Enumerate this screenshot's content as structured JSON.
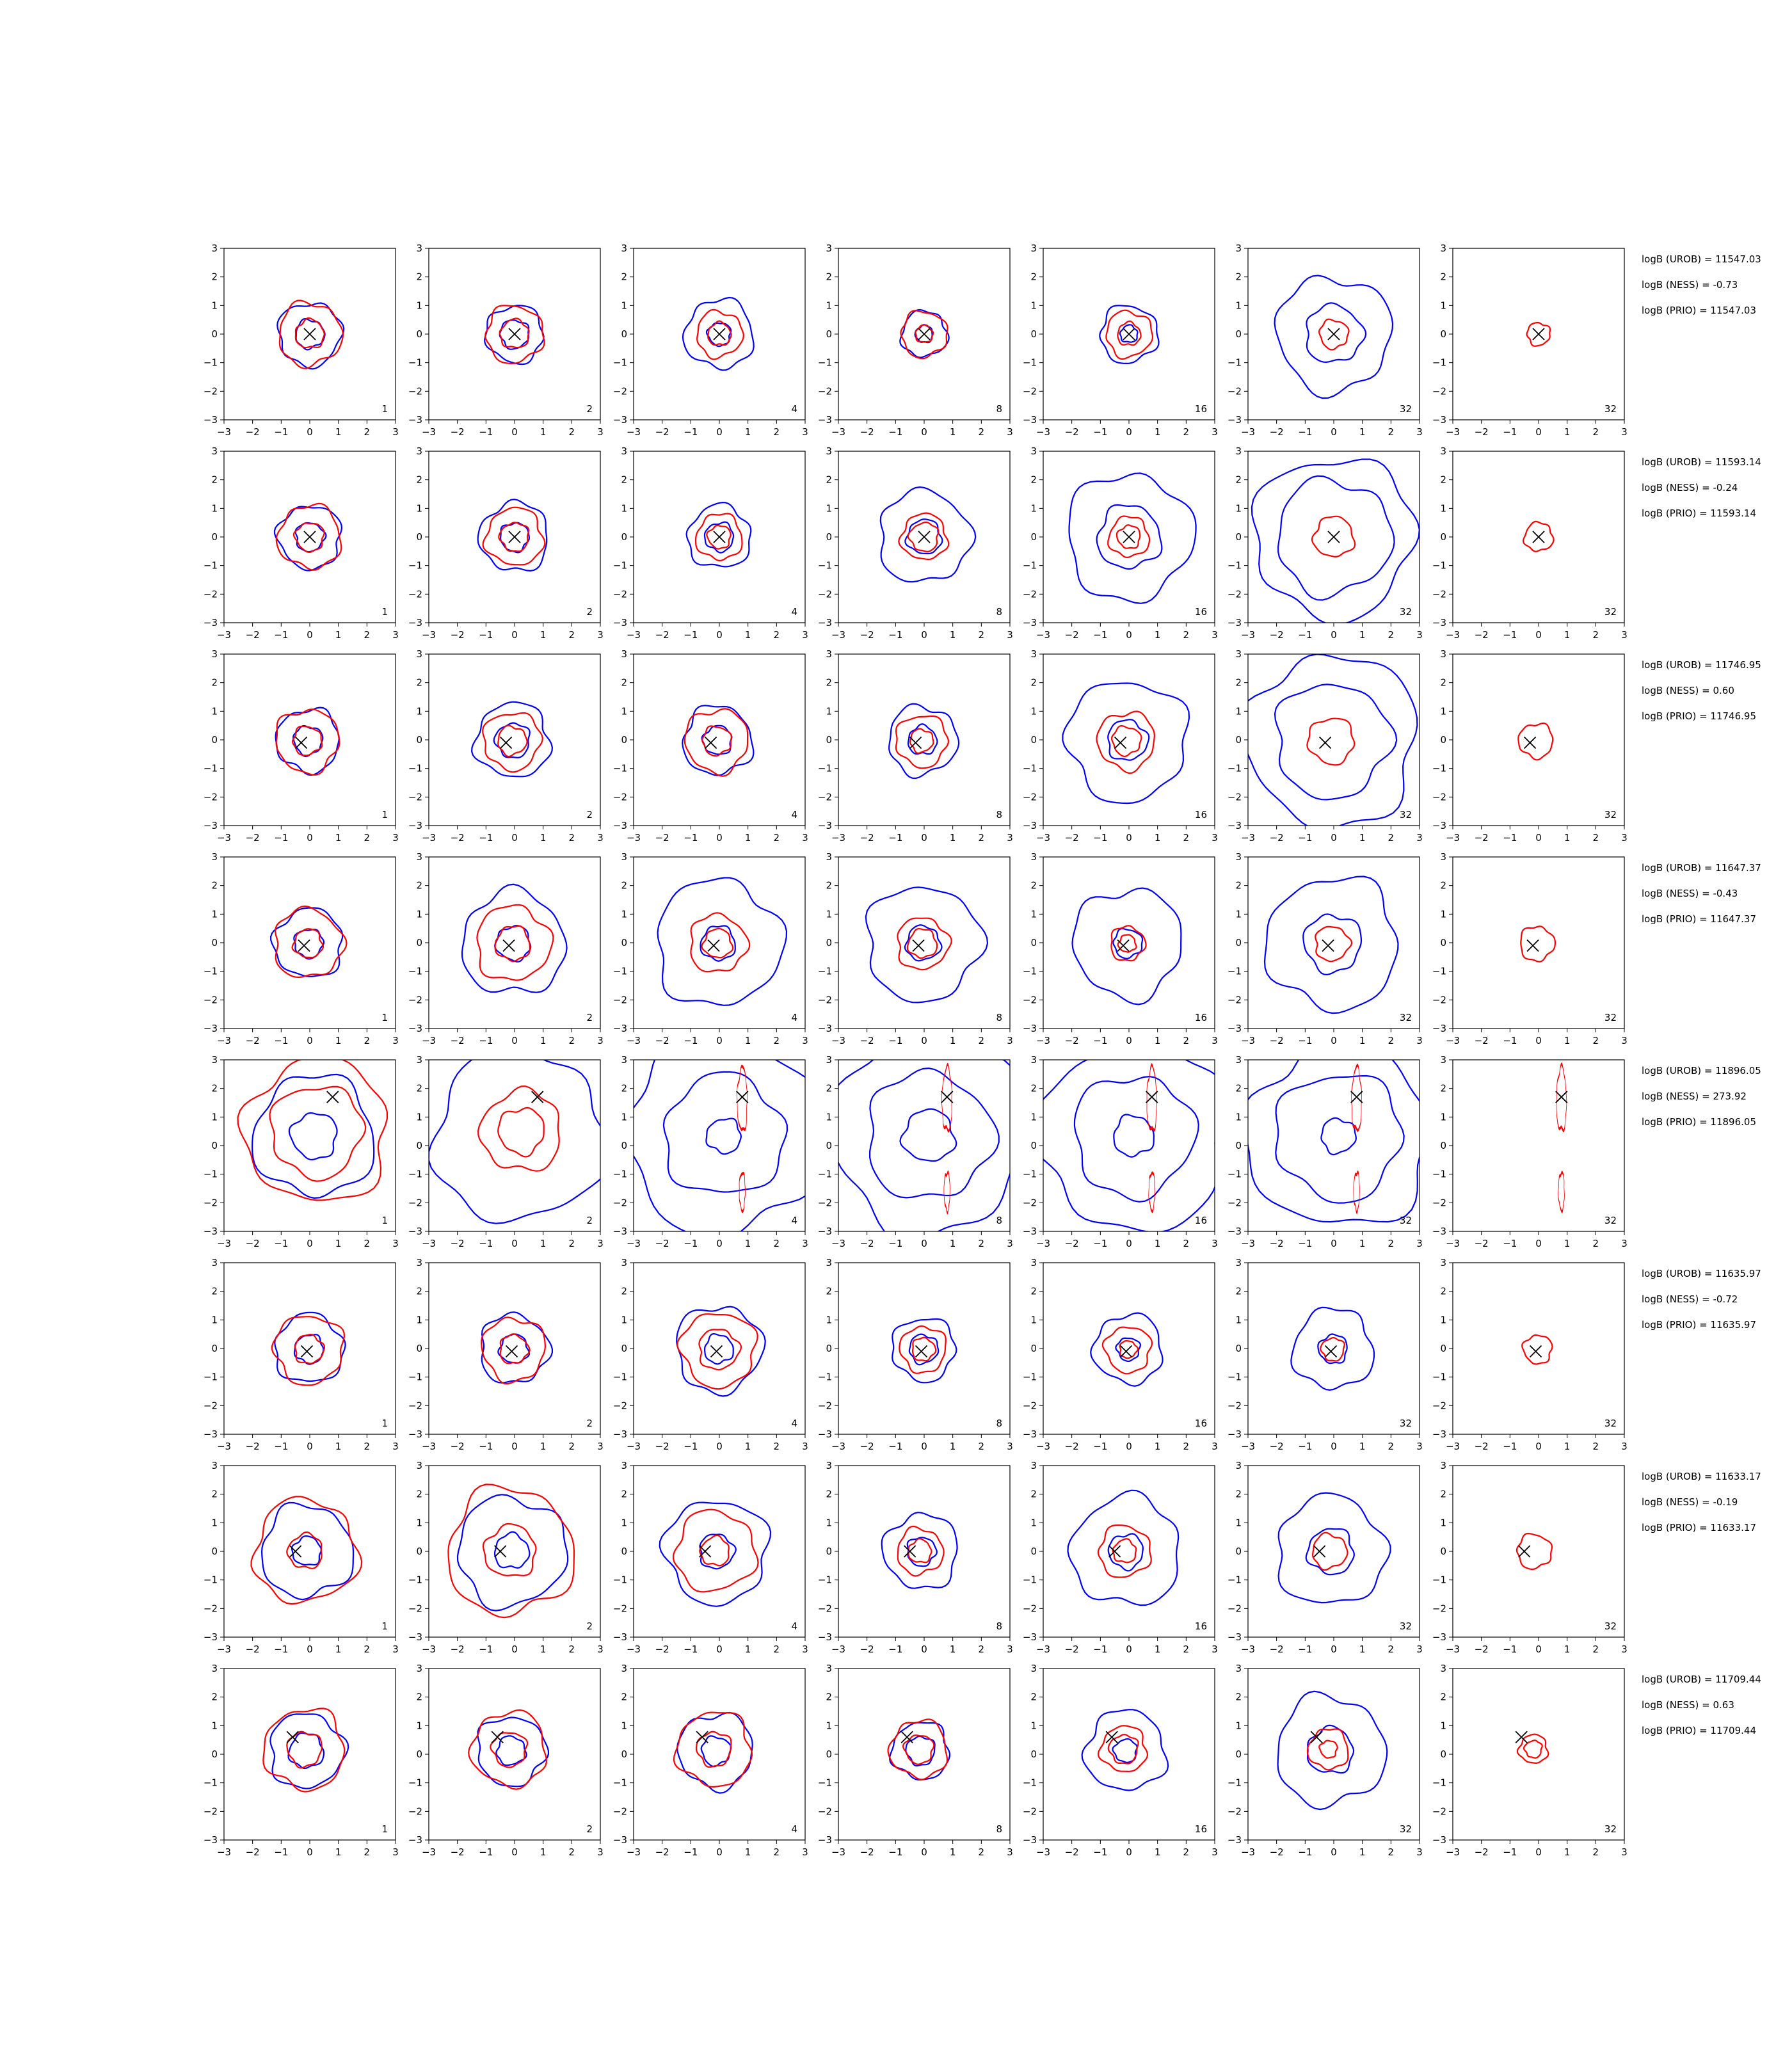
{
  "chart_data": {
    "type": "contour-grid",
    "rows": 8,
    "cols": 7,
    "xlim": [
      -3,
      3
    ],
    "ylim": [
      -3,
      3
    ],
    "ticks": [
      -3,
      -2,
      -1,
      0,
      1,
      2,
      3
    ],
    "tick_labels": [
      "−3",
      "−2",
      "−1",
      "0",
      "1",
      "2",
      "3"
    ],
    "colors": {
      "blue": "#0000ff",
      "red": "#ff0000",
      "marker": "#000000"
    },
    "row_data": [
      {
        "marker": [
          0.0,
          0.0
        ],
        "panels": [
          {
            "label": "1",
            "blue": [
              1.1,
              0.5
            ],
            "red": [
              1.1,
              0.5
            ]
          },
          {
            "label": "2",
            "blue": [
              1.0,
              0.5
            ],
            "red": [
              1.0,
              0.5
            ]
          },
          {
            "label": "4",
            "blue": [
              1.2,
              0.4
            ],
            "red": [
              0.8,
              0.4
            ]
          },
          {
            "label": "8",
            "blue": [
              0.8,
              0.3
            ],
            "red": [
              0.8,
              0.3
            ]
          },
          {
            "label": "16",
            "blue": [
              1.0,
              0.3
            ],
            "red": [
              0.8,
              0.4
            ]
          },
          {
            "label": "32",
            "blue": [
              2.0,
              1.0
            ],
            "red": [
              0.5
            ]
          },
          {
            "label": "32",
            "blue": [],
            "red": [
              0.4
            ]
          }
        ],
        "stats": [
          "logB (UROB) = 11547.03",
          "logB (NESS) = -0.73",
          "logB (PRIO) = 11547.03"
        ]
      },
      {
        "marker": [
          0.0,
          0.0
        ],
        "panels": [
          {
            "label": "1",
            "blue": [
              1.1,
              0.5
            ],
            "red": [
              1.1,
              0.5
            ]
          },
          {
            "label": "2",
            "blue": [
              1.2,
              0.5
            ],
            "red": [
              1.0,
              0.5
            ]
          },
          {
            "label": "4",
            "blue": [
              1.1,
              0.5
            ],
            "red": [
              0.8,
              0.4
            ]
          },
          {
            "label": "8",
            "blue": [
              1.6,
              0.6
            ],
            "red": [
              0.8,
              0.5
            ]
          },
          {
            "label": "16",
            "blue": [
              2.2,
              1.1
            ],
            "red": [
              0.7,
              0.4
            ]
          },
          {
            "label": "32",
            "blue": [
              2.8,
              2.0
            ],
            "red": [
              0.7
            ]
          },
          {
            "label": "32",
            "blue": [],
            "red": [
              0.5
            ]
          }
        ],
        "stats": [
          "logB (UROB) = 11593.14",
          "logB (NESS) = -0.24",
          "logB (PRIO) = 11593.14"
        ]
      },
      {
        "marker": [
          -0.3,
          -0.1
        ],
        "panels": [
          {
            "label": "1",
            "blue": [
              1.1,
              0.5
            ],
            "red": [
              1.1,
              0.5
            ]
          },
          {
            "label": "2",
            "blue": [
              1.3,
              0.6
            ],
            "red": [
              1.0,
              0.5
            ]
          },
          {
            "label": "4",
            "blue": [
              1.2,
              0.5
            ],
            "red": [
              1.1,
              0.5
            ]
          },
          {
            "label": "8",
            "blue": [
              1.2,
              0.5
            ],
            "red": [
              0.9,
              0.4
            ]
          },
          {
            "label": "16",
            "blue": [
              2.1,
              0.7
            ],
            "red": [
              1.0,
              0.5
            ]
          },
          {
            "label": "32",
            "blue": [
              3.0,
              2.0
            ],
            "red": [
              0.8
            ]
          },
          {
            "label": "32",
            "blue": [],
            "red": [
              0.6
            ]
          }
        ],
        "stats": [
          "logB (UROB) = 11746.95",
          "logB (NESS) = 0.60",
          "logB (PRIO) = 11746.95"
        ]
      },
      {
        "marker": [
          -0.2,
          -0.1
        ],
        "panels": [
          {
            "label": "1",
            "blue": [
              1.2,
              0.5
            ],
            "red": [
              1.2,
              0.5
            ]
          },
          {
            "label": "2",
            "blue": [
              1.8,
              0.6
            ],
            "red": [
              1.3,
              0.6
            ]
          },
          {
            "label": "4",
            "blue": [
              2.2,
              0.6
            ],
            "red": [
              1.0,
              0.5
            ]
          },
          {
            "label": "8",
            "blue": [
              2.0,
              0.6
            ],
            "red": [
              0.9,
              0.5
            ]
          },
          {
            "label": "16",
            "blue": [
              1.9,
              0.5
            ],
            "red": [
              0.6,
              0.3
            ]
          },
          {
            "label": "32",
            "blue": [
              2.3,
              1.0
            ],
            "red": [
              0.6
            ]
          },
          {
            "label": "32",
            "blue": [],
            "red": [
              0.6
            ]
          }
        ],
        "stats": [
          "logB (UROB) = 11647.37",
          "logB (NESS) = -0.43",
          "logB (PRIO) = 11647.37"
        ]
      },
      {
        "marker": [
          0.8,
          1.7
        ],
        "panels": [
          {
            "label": "1",
            "blue": [
              2.1,
              0.8
            ],
            "red": [
              2.5,
              1.6
            ]
          },
          {
            "label": "2",
            "blue": [
              3.0
            ],
            "red": [
              1.4,
              0.8
            ]
          },
          {
            "label": "4",
            "blue": [
              3.4,
              2.1,
              0.6
            ],
            "red": [
              0.5,
              0.3
            ]
          },
          {
            "label": "8",
            "blue": [
              3.4,
              2.2,
              0.9
            ],
            "red": [
              0.5,
              0.3
            ]
          },
          {
            "label": "16",
            "blue": [
              3.3,
              2.1,
              0.7
            ],
            "red": [
              0.5,
              0.3
            ]
          },
          {
            "label": "32",
            "blue": [
              3.2,
              2.2,
              0.6
            ],
            "red": [
              0.5,
              0.3
            ]
          },
          {
            "label": "32",
            "blue": [],
            "red": [
              0.5,
              0.3
            ]
          }
        ],
        "stats": [
          "logB (UROB) = 11896.05",
          "logB (NESS) = 273.92",
          "logB (PRIO) = 11896.05"
        ]
      },
      {
        "marker": [
          -0.1,
          -0.1
        ],
        "panels": [
          {
            "label": "1",
            "blue": [
              1.2,
              0.5
            ],
            "red": [
              1.2,
              0.5
            ]
          },
          {
            "label": "2",
            "blue": [
              1.2,
              0.5
            ],
            "red": [
              1.1,
              0.5
            ]
          },
          {
            "label": "4",
            "blue": [
              1.5,
              0.5
            ],
            "red": [
              1.3,
              0.7
            ]
          },
          {
            "label": "8",
            "blue": [
              1.1,
              0.5
            ],
            "red": [
              0.8,
              0.4
            ]
          },
          {
            "label": "16",
            "blue": [
              1.2,
              0.4
            ],
            "red": [
              0.8,
              0.3
            ]
          },
          {
            "label": "32",
            "blue": [
              1.4,
              0.5
            ],
            "red": [
              0.4
            ]
          },
          {
            "label": "32",
            "blue": [],
            "red": [
              0.5
            ]
          }
        ],
        "stats": [
          "logB (UROB) = 11635.97",
          "logB (NESS) = -0.72",
          "logB (PRIO) = 11635.97"
        ]
      },
      {
        "marker": [
          -0.5,
          0.0
        ],
        "panels": [
          {
            "label": "1",
            "blue": [
              1.6,
              0.5
            ],
            "red": [
              1.8,
              0.6
            ]
          },
          {
            "label": "2",
            "blue": [
              1.9,
              0.6
            ],
            "red": [
              2.2,
              0.9
            ]
          },
          {
            "label": "4",
            "blue": [
              1.8,
              0.6
            ],
            "red": [
              1.4,
              0.5
            ]
          },
          {
            "label": "8",
            "blue": [
              1.3,
              0.5
            ],
            "red": [
              0.8,
              0.4
            ]
          },
          {
            "label": "16",
            "blue": [
              1.9,
              0.6
            ],
            "red": [
              0.9,
              0.4
            ]
          },
          {
            "label": "32",
            "blue": [
              1.9,
              0.8
            ],
            "red": [
              0.6
            ]
          },
          {
            "label": "32",
            "blue": [],
            "red": [
              0.6
            ]
          }
        ],
        "stats": [
          "logB (UROB) = 11633.17",
          "logB (NESS) = -0.19",
          "logB (PRIO) = 11633.17"
        ]
      },
      {
        "marker": [
          -0.6,
          0.6
        ],
        "panels": [
          {
            "label": "1",
            "blue": [
              1.3,
              0.6
            ],
            "red": [
              1.4,
              0.6
            ]
          },
          {
            "label": "2",
            "blue": [
              1.2,
              0.5
            ],
            "red": [
              1.3,
              0.6
            ]
          },
          {
            "label": "4",
            "blue": [
              1.3,
              0.5
            ],
            "red": [
              1.3,
              0.6
            ]
          },
          {
            "label": "8",
            "blue": [
              1.0,
              0.5
            ],
            "red": [
              1.0,
              0.5
            ]
          },
          {
            "label": "16",
            "blue": [
              1.4,
              0.4
            ],
            "red": [
              0.8,
              0.5
            ]
          },
          {
            "label": "32",
            "blue": [
              1.9,
              0.8
            ],
            "red": [
              0.7,
              0.3
            ]
          },
          {
            "label": "32",
            "blue": [],
            "red": [
              0.5,
              0.3
            ]
          }
        ],
        "stats": [
          "logB (UROB) = 11709.44",
          "logB (NESS) = 0.63",
          "logB (PRIO) = 11709.44"
        ]
      }
    ]
  }
}
